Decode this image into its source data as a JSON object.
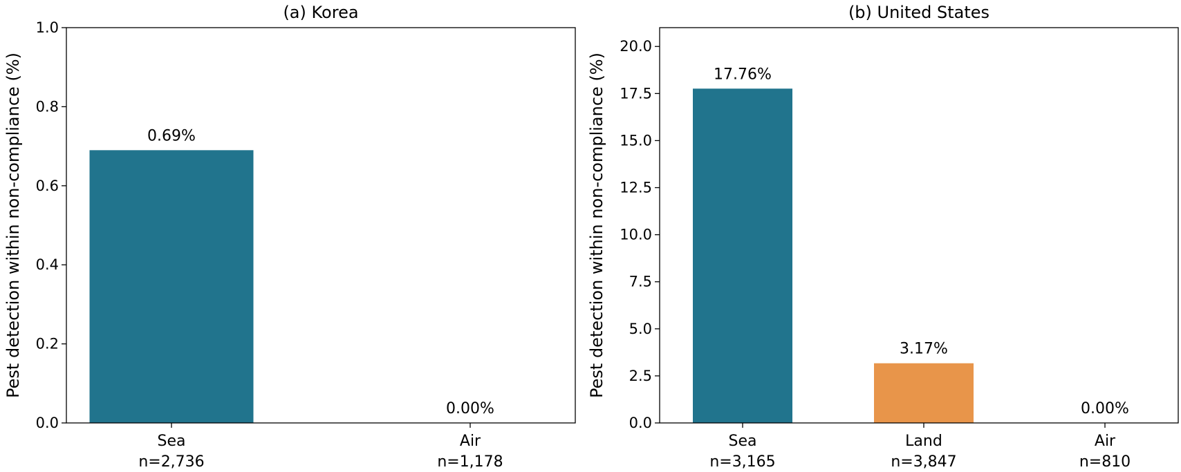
{
  "chart_data": [
    {
      "type": "bar",
      "title": "(a) Korea",
      "ylabel": "Pest detection within non-compliance (%)",
      "xlabel": "",
      "ylim": [
        0,
        1.0
      ],
      "yticks": [
        "0.0",
        "0.2",
        "0.4",
        "0.6",
        "0.8",
        "1.0"
      ],
      "categories": [
        "Sea",
        "Air"
      ],
      "sublabels": [
        "n=2,736",
        "n=1,178"
      ],
      "values": [
        0.69,
        0.0
      ],
      "data_labels": [
        "0.69%",
        "0.00%"
      ],
      "colors": [
        "#21748d",
        "#21748d"
      ]
    },
    {
      "type": "bar",
      "title": "(b) United States",
      "ylabel": "Pest detection within non-compliance (%)",
      "xlabel": "",
      "ylim": [
        0,
        21.0
      ],
      "yticks": [
        "0.0",
        "2.5",
        "5.0",
        "7.5",
        "10.0",
        "12.5",
        "15.0",
        "17.5",
        "20.0"
      ],
      "categories": [
        "Sea",
        "Land",
        "Air"
      ],
      "sublabels": [
        "n=3,165",
        "n=3,847",
        "n=810"
      ],
      "values": [
        17.76,
        3.17,
        0.0
      ],
      "data_labels": [
        "17.76%",
        "3.17%",
        "0.00%"
      ],
      "colors": [
        "#21748d",
        "#e8954a",
        "#21748d"
      ]
    }
  ]
}
